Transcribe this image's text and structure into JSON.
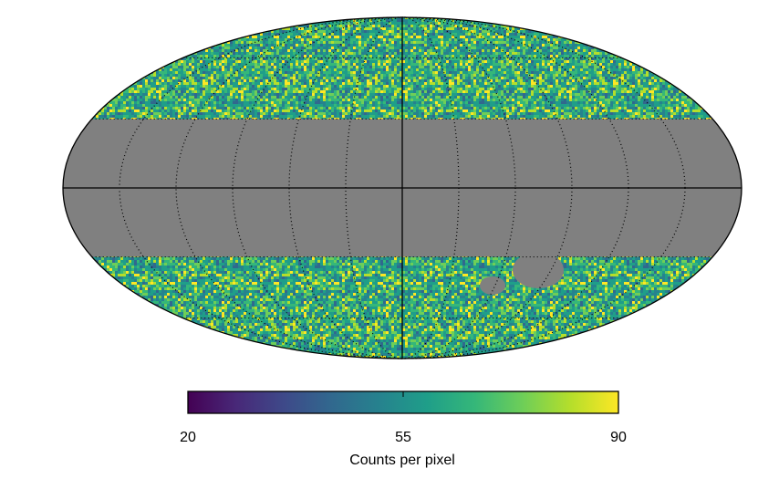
{
  "chart_data": {
    "type": "mollweide",
    "projection": "mollweide",
    "colormap": "viridis",
    "masked_color": "#808080",
    "masked_latitude": 30,
    "graticule_step": 30,
    "colorbar": {
      "label": "Counts per pixel",
      "lim": [
        20,
        90
      ],
      "ticks": [
        20,
        55,
        90
      ]
    }
  }
}
